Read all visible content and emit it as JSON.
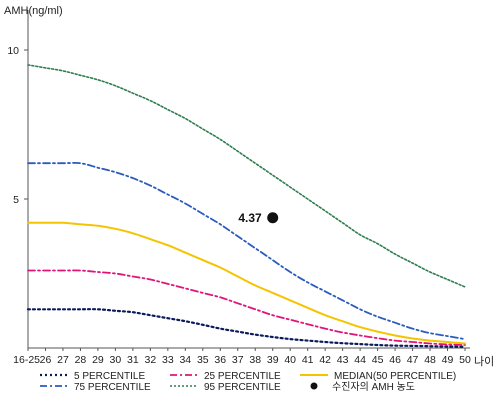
{
  "chart_data": {
    "type": "line",
    "ylabel": "AMH(ng/ml)",
    "xlabel": "나이",
    "yticks": [
      5,
      10
    ],
    "ylim": [
      0,
      11
    ],
    "categories": [
      "16-25",
      "26",
      "27",
      "28",
      "29",
      "30",
      "31",
      "32",
      "33",
      "34",
      "35",
      "36",
      "37",
      "38",
      "39",
      "40",
      "41",
      "42",
      "43",
      "44",
      "45",
      "46",
      "47",
      "48",
      "49",
      "50"
    ],
    "series": [
      {
        "name": "5 PERCENTILE",
        "color": "#0a1a5c",
        "dash": "2 3",
        "width": 2.2,
        "values": [
          1.3,
          1.3,
          1.3,
          1.3,
          1.3,
          1.25,
          1.2,
          1.1,
          1.0,
          0.9,
          0.78,
          0.65,
          0.55,
          0.45,
          0.37,
          0.3,
          0.25,
          0.2,
          0.16,
          0.13,
          0.1,
          0.08,
          0.07,
          0.06,
          0.05,
          0.04
        ]
      },
      {
        "name": "25 PERCENTILE",
        "color": "#e0157a",
        "dash": "7 3 2 3",
        "width": 1.8,
        "values": [
          2.6,
          2.6,
          2.6,
          2.6,
          2.55,
          2.5,
          2.4,
          2.3,
          2.15,
          2.0,
          1.85,
          1.7,
          1.5,
          1.3,
          1.1,
          0.95,
          0.8,
          0.65,
          0.52,
          0.42,
          0.33,
          0.25,
          0.2,
          0.15,
          0.12,
          0.1
        ]
      },
      {
        "name": "MEDIAN(50 PERCENTILE)",
        "color": "#f5c400",
        "dash": "",
        "width": 2.0,
        "values": [
          4.2,
          4.2,
          4.2,
          4.15,
          4.1,
          4.0,
          3.85,
          3.65,
          3.45,
          3.2,
          2.95,
          2.7,
          2.4,
          2.1,
          1.85,
          1.6,
          1.35,
          1.1,
          0.9,
          0.7,
          0.55,
          0.42,
          0.32,
          0.25,
          0.2,
          0.15
        ]
      },
      {
        "name": "75 PERCENTILE",
        "color": "#2b5bbf",
        "dash": "7 3 2 3",
        "width": 1.8,
        "values": [
          6.2,
          6.2,
          6.2,
          6.2,
          6.05,
          5.9,
          5.7,
          5.45,
          5.15,
          4.85,
          4.5,
          4.15,
          3.75,
          3.35,
          2.95,
          2.55,
          2.2,
          1.9,
          1.6,
          1.3,
          1.05,
          0.85,
          0.65,
          0.5,
          0.4,
          0.3
        ]
      },
      {
        "name": "95 PERCENTILE",
        "color": "#2e7d4f",
        "dash": "2 2",
        "width": 1.6,
        "values": [
          9.5,
          9.4,
          9.3,
          9.15,
          9.0,
          8.8,
          8.55,
          8.3,
          8.0,
          7.7,
          7.35,
          7.0,
          6.6,
          6.2,
          5.8,
          5.4,
          5.0,
          4.6,
          4.2,
          3.8,
          3.5,
          3.15,
          2.85,
          2.55,
          2.3,
          2.05
        ]
      }
    ],
    "marker": {
      "name": "수진자의 AMH 농도",
      "x": "39",
      "value": 4.37,
      "label": "4.37",
      "color": "#111111"
    },
    "legend_position": "bottom"
  }
}
